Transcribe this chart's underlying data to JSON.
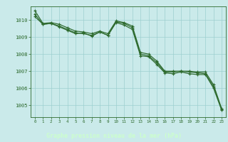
{
  "background_color": "#caeaea",
  "plot_bg_color": "#caeaea",
  "bottom_bar_color": "#3a7a3a",
  "line_color": "#2d6a2d",
  "tick_label_color": "#2d6a2d",
  "bottom_text_color": "#ccffcc",
  "title": "Graphe pression niveau de la mer (hPa)",
  "xlim": [
    -0.5,
    23.5
  ],
  "ylim": [
    1004.3,
    1010.8
  ],
  "yticks": [
    1005,
    1006,
    1007,
    1008,
    1009,
    1010
  ],
  "xticks": [
    0,
    1,
    2,
    3,
    4,
    5,
    6,
    7,
    8,
    9,
    10,
    11,
    12,
    13,
    14,
    15,
    16,
    17,
    18,
    19,
    20,
    21,
    22,
    23
  ],
  "series": [
    [
      1010.55,
      1009.8,
      1009.85,
      1009.75,
      1009.55,
      1009.35,
      1009.3,
      1009.2,
      1009.35,
      1009.2,
      1009.95,
      1009.85,
      1009.65,
      1008.1,
      1008.0,
      1007.6,
      1007.0,
      1007.0,
      1007.0,
      1007.0,
      1006.95,
      1006.95,
      1006.2,
      1004.8
    ],
    [
      1010.2,
      1009.75,
      1009.8,
      1009.65,
      1009.45,
      1009.25,
      1009.2,
      1009.1,
      1009.3,
      1009.1,
      1009.9,
      1009.8,
      1009.55,
      1008.0,
      1007.9,
      1007.5,
      1006.95,
      1006.95,
      1007.0,
      1006.95,
      1006.9,
      1006.85,
      1006.1,
      1004.75
    ],
    [
      1010.35,
      1009.75,
      1009.8,
      1009.6,
      1009.4,
      1009.2,
      1009.25,
      1009.05,
      1009.3,
      1009.1,
      1009.85,
      1009.7,
      1009.45,
      1007.9,
      1007.85,
      1007.4,
      1006.9,
      1006.85,
      1006.95,
      1006.85,
      1006.8,
      1006.8,
      1006.0,
      1004.7
    ]
  ]
}
